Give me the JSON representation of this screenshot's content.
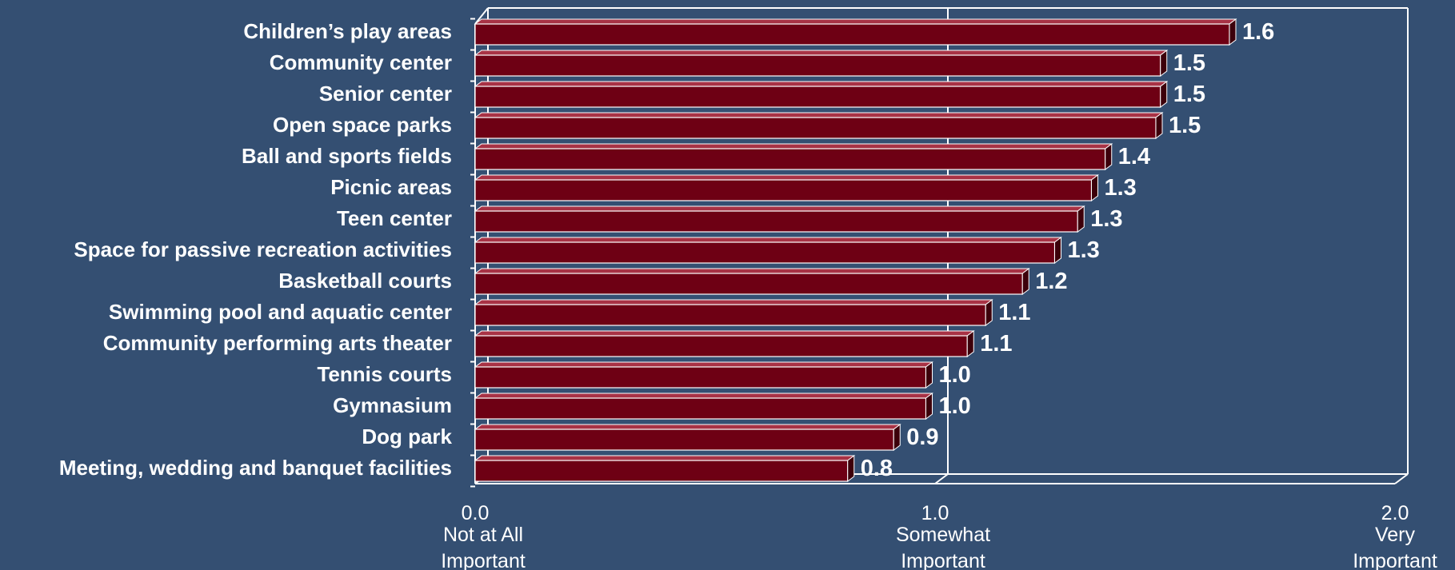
{
  "chart_data": {
    "type": "bar",
    "orientation": "horizontal",
    "categories": [
      "Children’s play areas",
      "Community center",
      "Senior center",
      "Open space parks",
      "Ball and sports fields",
      "Picnic areas",
      "Teen center",
      "Space for passive recreation activities",
      "Basketball courts",
      "Swimming pool and aquatic center",
      "Community performing arts theater",
      "Tennis courts",
      "Gymnasium",
      "Dog park",
      "Meeting, wedding and banquet facilities"
    ],
    "values": [
      1.64,
      1.49,
      1.49,
      1.48,
      1.37,
      1.34,
      1.31,
      1.26,
      1.19,
      1.11,
      1.07,
      0.98,
      0.98,
      0.91,
      0.81
    ],
    "value_labels": [
      "1.6",
      "1.5",
      "1.5",
      "1.5",
      "1.4",
      "1.3",
      "1.3",
      "1.3",
      "1.2",
      "1.1",
      "1.1",
      "1.0",
      "1.0",
      "0.9",
      "0.8"
    ],
    "xlim": [
      0,
      2
    ],
    "x_ticks": [
      {
        "value": 0,
        "label": "0.0",
        "sub": [
          "Not at All",
          "Important"
        ]
      },
      {
        "value": 1,
        "label": "1.0",
        "sub": [
          "Somewhat",
          "Important"
        ]
      },
      {
        "value": 2,
        "label": "2.0",
        "sub": [
          "Very",
          "Important"
        ]
      }
    ],
    "grid": true,
    "bar_color": "#6E0014",
    "bar_side_color": "#3D000B",
    "bar_top_color": "#A83245",
    "axis_color": "#FFFFFF",
    "title": "",
    "xlabel": "",
    "ylabel": ""
  }
}
